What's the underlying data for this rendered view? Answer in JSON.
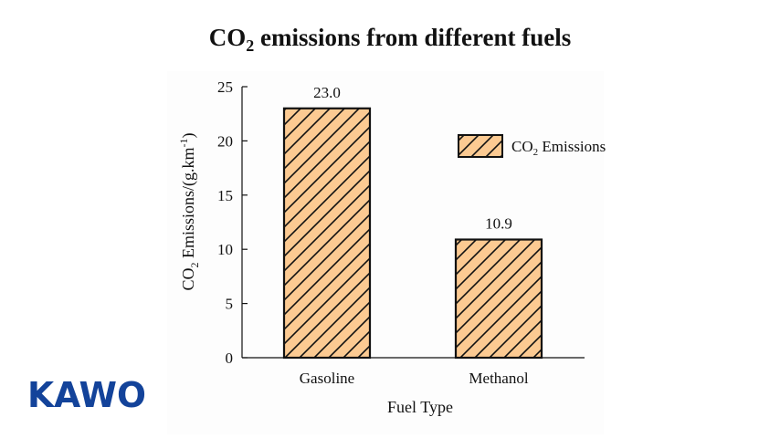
{
  "chart_data": {
    "type": "bar",
    "title": "CO₂ emissions from different fuels",
    "xlabel": "Fuel Type",
    "ylabel": "CO₂ Emissions/(g.km⁻¹)",
    "categories": [
      "Gasoline",
      "Methanol"
    ],
    "series": [
      {
        "name": "CO₂ Emissions",
        "values": [
          23.0,
          10.9
        ]
      }
    ],
    "value_labels": [
      "23.0",
      "10.9"
    ],
    "ylim": [
      0,
      25
    ],
    "yticks": [
      0,
      5,
      10,
      15,
      20,
      25
    ],
    "grid": false,
    "legend": "top-right",
    "bar_fill": "#fcca92",
    "hatch": "diagonal"
  },
  "logo": {
    "text": "KAWO",
    "color": "#13439a"
  }
}
